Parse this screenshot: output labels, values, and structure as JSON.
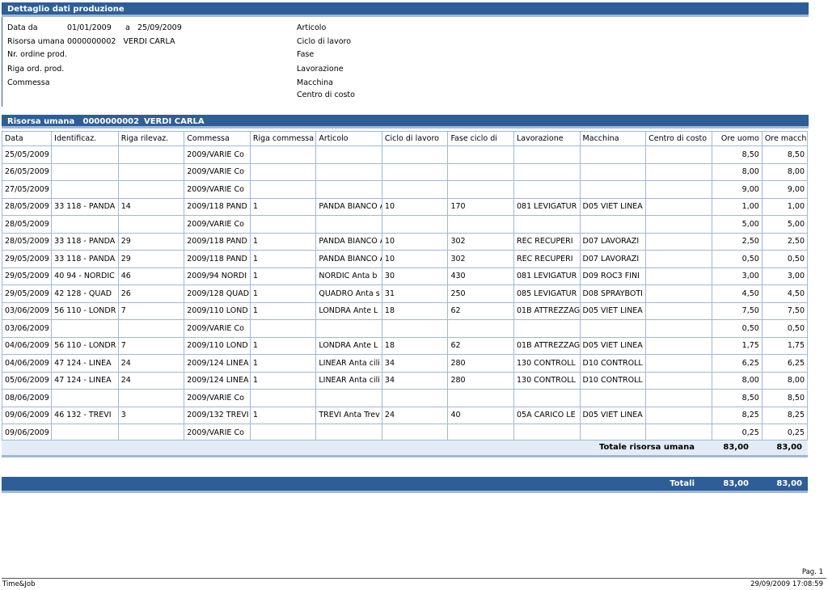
{
  "header": {
    "title": "Dettaglio dati produzione"
  },
  "filters": {
    "data_da_label": "Data da",
    "data_da_value": "01/01/2009",
    "a_label": "a",
    "a_value": "25/09/2009",
    "risorsa_label": "Risorsa umana",
    "risorsa_value": "0000000002   VERDI CARLA",
    "ordine_label": "Nr. ordine prod.",
    "riga_ord_label": "Riga ord. prod.",
    "commessa_label": "Commessa",
    "articolo_label": "Articolo",
    "ciclo_label": "Ciclo di lavoro",
    "fase_label": "Fase",
    "lavorazione_label": "Lavorazione",
    "macchina_label": "Macchina",
    "centro_label": "Centro di costo"
  },
  "resource": {
    "label": "Risorsa umana",
    "code": "0000000002",
    "name": "VERDI CARLA"
  },
  "table": {
    "columns": [
      "Data",
      "Identificaz.",
      "Riga rilevaz.",
      "Commessa",
      "Riga commessa",
      "Articolo",
      "Ciclo di lavoro",
      "Fase ciclo di",
      "Lavorazione",
      "Macchina",
      "Centro di costo",
      "Ore uomo",
      "Ore macch."
    ],
    "rows": [
      [
        "25/05/2009",
        "",
        "",
        "2009/VARIE  Co",
        "",
        "",
        "",
        "",
        "",
        "",
        "",
        "8,50",
        "8,50"
      ],
      [
        "26/05/2009",
        "",
        "",
        "2009/VARIE  Co",
        "",
        "",
        "",
        "",
        "",
        "",
        "",
        "8,00",
        "8,00"
      ],
      [
        "27/05/2009",
        "",
        "",
        "2009/VARIE  Co",
        "",
        "",
        "",
        "",
        "",
        "",
        "",
        "9,00",
        "9,00"
      ],
      [
        "28/05/2009",
        "33  118 - PANDA",
        "14",
        "2009/118  PAND",
        "1",
        "PANDA BIANCO  A",
        "10",
        "170",
        "081  LEVIGATUR",
        "D05  VIET LINEA",
        "",
        "1,00",
        "1,00"
      ],
      [
        "28/05/2009",
        "",
        "",
        "2009/VARIE  Co",
        "",
        "",
        "",
        "",
        "",
        "",
        "",
        "5,00",
        "5,00"
      ],
      [
        "28/05/2009",
        "33  118 - PANDA",
        "29",
        "2009/118  PAND",
        "1",
        "PANDA BIANCO  A",
        "10",
        "302",
        "REC  RECUPERI",
        "D07  LAVORAZI",
        "",
        "2,50",
        "2,50"
      ],
      [
        "29/05/2009",
        "33  118 - PANDA",
        "29",
        "2009/118  PAND",
        "1",
        "PANDA BIANCO  A",
        "10",
        "302",
        "REC  RECUPERI",
        "D07  LAVORAZI",
        "",
        "0,50",
        "0,50"
      ],
      [
        "29/05/2009",
        "40  94 - NORDIC",
        "46",
        "2009/94  NORDI",
        "1",
        "NORDIC  Anta b",
        "30",
        "430",
        "081  LEVIGATUR",
        "D09  ROC3 FINI",
        "",
        "3,00",
        "3,00"
      ],
      [
        "29/05/2009",
        "42  128 - QUAD",
        "26",
        "2009/128  QUAD",
        "1",
        "QUADRO  Anta s",
        "31",
        "250",
        "085  LEVIGATUR",
        "D08  SPRAYBOTI",
        "",
        "4,50",
        "4,50"
      ],
      [
        "03/06/2009",
        "56  110 - LONDR",
        "7",
        "2009/110  LOND",
        "1",
        "LONDRA  Ante L",
        "18",
        "62",
        "01B  ATTREZZAG",
        "D05  VIET LINEA",
        "",
        "7,50",
        "7,50"
      ],
      [
        "03/06/2009",
        "",
        "",
        "2009/VARIE  Co",
        "",
        "",
        "",
        "",
        "",
        "",
        "",
        "0,50",
        "0,50"
      ],
      [
        "04/06/2009",
        "56  110 - LONDR",
        "7",
        "2009/110  LOND",
        "1",
        "LONDRA  Ante L",
        "18",
        "62",
        "01B  ATTREZZAG",
        "D05  VIET LINEA",
        "",
        "1,75",
        "1,75"
      ],
      [
        "04/06/2009",
        "47  124 - LINEA",
        "24",
        "2009/124  LINEA",
        "1",
        "LINEAR  Anta cili",
        "34",
        "280",
        "130  CONTROLL",
        "D10  CONTROLL",
        "",
        "6,25",
        "6,25"
      ],
      [
        "05/06/2009",
        "47  124 - LINEA",
        "24",
        "2009/124  LINEA",
        "1",
        "LINEAR  Anta cili",
        "34",
        "280",
        "130  CONTROLL",
        "D10  CONTROLL",
        "",
        "8,00",
        "8,00"
      ],
      [
        "08/06/2009",
        "",
        "",
        "2009/VARIE  Co",
        "",
        "",
        "",
        "",
        "",
        "",
        "",
        "8,50",
        "8,50"
      ],
      [
        "09/06/2009",
        "46  132 - TREVI",
        "3",
        "2009/132  TREVI",
        "1",
        "TREVI  Anta Trev",
        "24",
        "40",
        "05A  CARICO LE",
        "D05  VIET LINEA",
        "",
        "8,25",
        "8,25"
      ],
      [
        "09/06/2009",
        "",
        "",
        "2009/VARIE  Co",
        "",
        "",
        "",
        "",
        "",
        "",
        "",
        "0,25",
        "0,25"
      ]
    ]
  },
  "subtotal": {
    "label": "Totale risorsa umana",
    "ore_uomo": "83,00",
    "ore_macch": "83,00"
  },
  "totals": {
    "label": "Totali",
    "ore_uomo": "83,00",
    "ore_macch": "83,00"
  },
  "footer": {
    "app": "Time&Job",
    "page": "Pag. 1",
    "timestamp": "29/09/2009 17:08:59"
  },
  "colors": {
    "header_blue": "#2e5e95",
    "grid_line": "#9fb8d6",
    "subtotal_bg": "#e3ecf6"
  }
}
